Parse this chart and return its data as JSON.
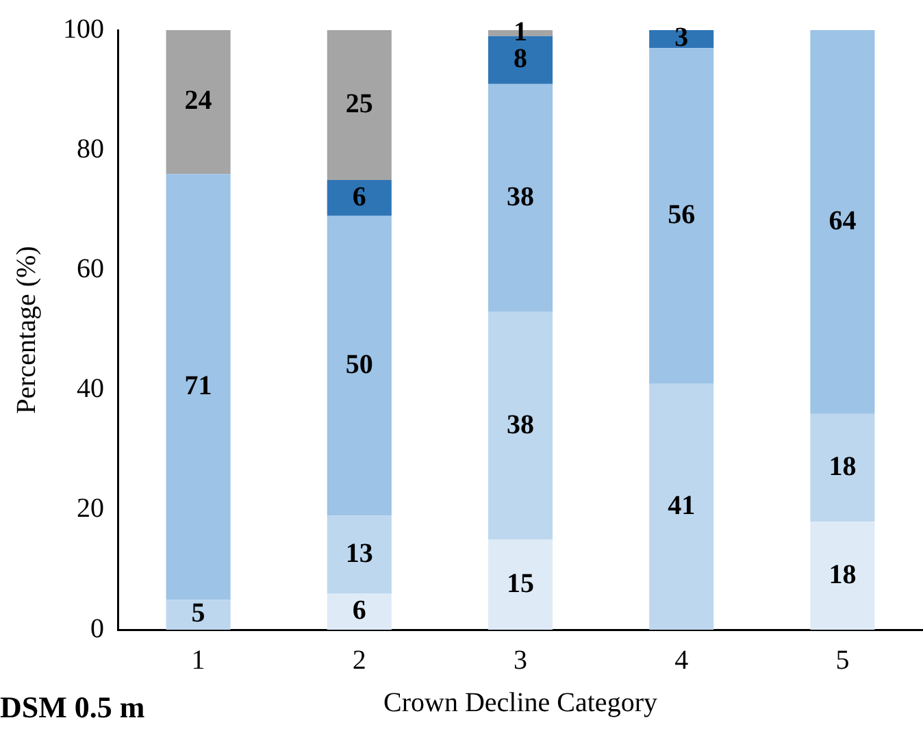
{
  "chart_data": {
    "type": "bar",
    "stacked": true,
    "xlabel": "Crown Decline Category",
    "ylabel": "Percentage (%)",
    "categories": [
      "1",
      "2",
      "3",
      "4",
      "5"
    ],
    "series": [
      {
        "color": "#deebf7",
        "values": [
          null,
          6,
          15,
          null,
          18
        ]
      },
      {
        "color": "#bdd7ee",
        "values": [
          5,
          13,
          38,
          41,
          18
        ]
      },
      {
        "color": "#9dc3e6",
        "values": [
          71,
          50,
          38,
          56,
          64
        ]
      },
      {
        "color": "#2e75b6",
        "values": [
          null,
          6,
          8,
          3,
          null
        ]
      },
      {
        "color": "#a5a5a5",
        "values": [
          24,
          25,
          1,
          null,
          null
        ]
      }
    ],
    "ylim": [
      0,
      100
    ],
    "yticks": [
      0,
      20,
      40,
      60,
      80,
      100
    ],
    "grid": false,
    "legend": false,
    "data_labels": true,
    "annotations": [
      "DSM 0.5 m"
    ]
  }
}
